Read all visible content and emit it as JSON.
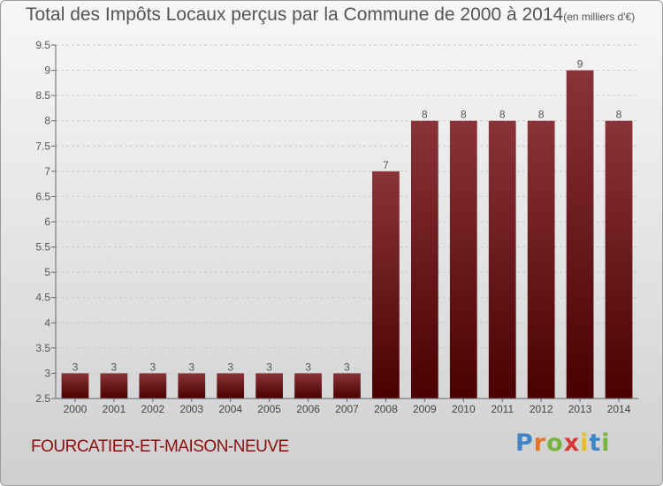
{
  "title": {
    "main": "Total des Impôts Locaux perçus par la Commune de 2000 à 2014",
    "unit": "(en milliers d'€)"
  },
  "commune_name": "FOURCATIER-ET-MAISON-NEUVE",
  "logo_text": [
    "P",
    "r",
    "o",
    "x",
    "i",
    "t",
    "i"
  ],
  "colors": {
    "bar_top": "#8a3338",
    "bar_bottom": "#4a0000",
    "commune_text": "#8b0f10",
    "title_text": "#555555"
  },
  "chart_data": {
    "type": "bar",
    "categories": [
      "2000",
      "2001",
      "2002",
      "2003",
      "2004",
      "2005",
      "2006",
      "2007",
      "2008",
      "2009",
      "2010",
      "2011",
      "2012",
      "2013",
      "2014"
    ],
    "values": [
      3,
      3,
      3,
      3,
      3,
      3,
      3,
      3,
      7,
      8,
      8,
      8,
      8,
      9,
      8
    ],
    "data_labels": [
      "3",
      "3",
      "3",
      "3",
      "3",
      "3",
      "3",
      "3",
      "7",
      "8",
      "8",
      "8",
      "8",
      "9",
      "8"
    ],
    "ylim": [
      2.5,
      9.5
    ],
    "yticks": [
      "2.5",
      "3",
      "3.5",
      "4",
      "4.5",
      "5",
      "5.5",
      "6",
      "6.5",
      "7",
      "7.5",
      "8",
      "8.5",
      "9",
      "9.5"
    ],
    "xlabel": "",
    "ylabel": "",
    "grid": true
  }
}
